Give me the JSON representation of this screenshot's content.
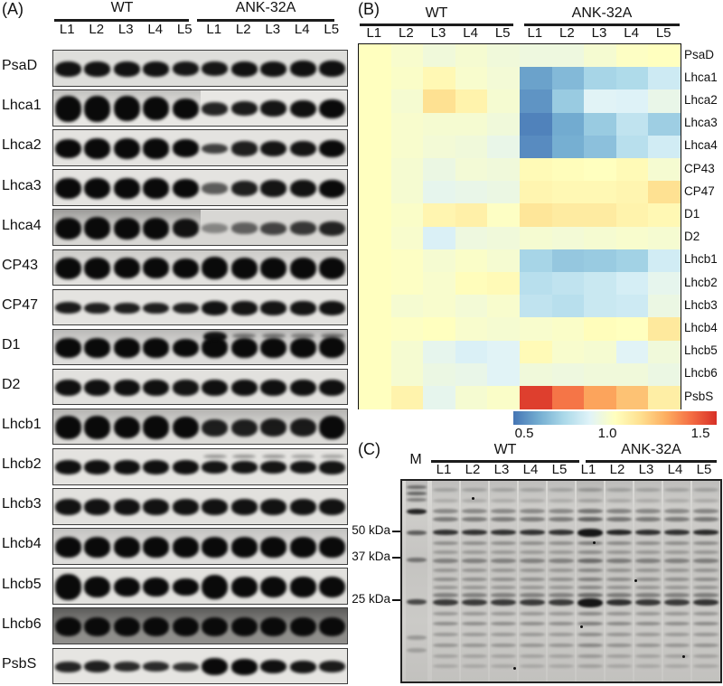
{
  "panel_a": {
    "letter": "(A)",
    "groups": [
      {
        "name": "WT",
        "lanes": [
          "L1",
          "L2",
          "L3",
          "L4",
          "L5"
        ]
      },
      {
        "name": "ANK-32A",
        "lanes": [
          "L1",
          "L2",
          "L3",
          "L4",
          "L5"
        ]
      }
    ],
    "blots": [
      {
        "label": "PsaD",
        "bg": "#dededb",
        "lanes": [
          [
            0.44,
            0.96
          ],
          [
            0.44,
            0.96
          ],
          [
            0.44,
            0.96
          ],
          [
            0.44,
            0.96
          ],
          [
            0.42,
            0.94
          ],
          [
            0.42,
            0.94
          ],
          [
            0.44,
            0.96
          ],
          [
            0.44,
            0.96
          ],
          [
            0.46,
            0.97
          ],
          [
            0.46,
            0.97
          ]
        ]
      },
      {
        "label": "Lhca1",
        "bg": "#e8e7e4",
        "haze": [
          0,
          5,
          0.2
        ],
        "lanes": [
          [
            0.74,
            1
          ],
          [
            0.74,
            1
          ],
          [
            0.72,
            1
          ],
          [
            0.68,
            1
          ],
          [
            0.6,
            1
          ],
          [
            0.38,
            0.88
          ],
          [
            0.42,
            0.92
          ],
          [
            0.46,
            0.95
          ],
          [
            0.5,
            0.97
          ],
          [
            0.56,
            1
          ]
        ]
      },
      {
        "label": "Lhca2",
        "bg": "#e4e3e0",
        "lanes": [
          [
            0.56,
            1
          ],
          [
            0.6,
            1
          ],
          [
            0.62,
            1
          ],
          [
            0.58,
            1
          ],
          [
            0.52,
            1
          ],
          [
            0.3,
            0.75
          ],
          [
            0.42,
            0.9
          ],
          [
            0.46,
            0.95
          ],
          [
            0.46,
            0.95
          ],
          [
            0.5,
            1
          ]
        ]
      },
      {
        "label": "Lhca3",
        "bg": "#e4e3e0",
        "lanes": [
          [
            0.6,
            1
          ],
          [
            0.62,
            1
          ],
          [
            0.6,
            1
          ],
          [
            0.6,
            1
          ],
          [
            0.56,
            1
          ],
          [
            0.32,
            0.62
          ],
          [
            0.44,
            0.9
          ],
          [
            0.48,
            0.95
          ],
          [
            0.5,
            0.96
          ],
          [
            0.52,
            1
          ]
        ]
      },
      {
        "label": "Lhca4",
        "bg": "#d8d7d4",
        "haze": [
          0,
          5,
          0.35
        ],
        "lanes": [
          [
            0.62,
            1
          ],
          [
            0.64,
            1
          ],
          [
            0.62,
            1
          ],
          [
            0.62,
            1
          ],
          [
            0.54,
            0.96
          ],
          [
            0.28,
            0.4
          ],
          [
            0.32,
            0.58
          ],
          [
            0.36,
            0.72
          ],
          [
            0.38,
            0.78
          ],
          [
            0.42,
            0.88
          ]
        ]
      },
      {
        "label": "CP43",
        "bg": "#e2e1de",
        "haze": [
          0,
          10,
          0.12
        ],
        "lanes": [
          [
            0.62,
            1
          ],
          [
            0.62,
            1
          ],
          [
            0.6,
            1
          ],
          [
            0.6,
            1
          ],
          [
            0.58,
            1
          ],
          [
            0.64,
            1
          ],
          [
            0.62,
            1
          ],
          [
            0.62,
            1
          ],
          [
            0.62,
            1
          ],
          [
            0.62,
            1
          ]
        ]
      },
      {
        "label": "CP47",
        "bg": "#e4e3e0",
        "lanes": [
          [
            0.34,
            0.92
          ],
          [
            0.32,
            0.9
          ],
          [
            0.32,
            0.9
          ],
          [
            0.32,
            0.9
          ],
          [
            0.32,
            0.9
          ],
          [
            0.42,
            0.96
          ],
          [
            0.4,
            0.95
          ],
          [
            0.4,
            0.95
          ],
          [
            0.4,
            0.95
          ],
          [
            0.42,
            0.96
          ]
        ]
      },
      {
        "label": "D1",
        "bg": "#dedddb",
        "haze": [
          0,
          10,
          0.2
        ],
        "lanes": [
          [
            0.56,
            1
          ],
          [
            0.56,
            1
          ],
          [
            0.56,
            1
          ],
          [
            0.56,
            1
          ],
          [
            0.54,
            1
          ],
          [
            0.6,
            1
          ],
          [
            0.58,
            1
          ],
          [
            0.58,
            1
          ],
          [
            0.56,
            1
          ],
          [
            0.6,
            1
          ]
        ],
        "extras": [
          [
            5,
            0.2,
            0.3,
            0.95
          ],
          [
            6,
            0.18,
            0.14,
            0.45
          ],
          [
            7,
            0.18,
            0.14,
            0.45
          ],
          [
            8,
            0.18,
            0.13,
            0.4
          ],
          [
            9,
            0.18,
            0.14,
            0.45
          ]
        ]
      },
      {
        "label": "D2",
        "bg": "#e2e1de",
        "lanes": [
          [
            0.48,
            0.97
          ],
          [
            0.48,
            0.97
          ],
          [
            0.48,
            0.97
          ],
          [
            0.48,
            0.97
          ],
          [
            0.46,
            0.95
          ],
          [
            0.48,
            0.97
          ],
          [
            0.48,
            0.97
          ],
          [
            0.48,
            0.97
          ],
          [
            0.48,
            0.97
          ],
          [
            0.48,
            0.97
          ]
        ]
      },
      {
        "label": "Lhcb1",
        "bg": "#dcdbd8",
        "haze": [
          0,
          10,
          0.22
        ],
        "lanes": [
          [
            0.66,
            1
          ],
          [
            0.66,
            1
          ],
          [
            0.64,
            1
          ],
          [
            0.66,
            1
          ],
          [
            0.64,
            1
          ],
          [
            0.5,
            0.9
          ],
          [
            0.5,
            0.9
          ],
          [
            0.52,
            0.92
          ],
          [
            0.52,
            0.92
          ],
          [
            0.68,
            1
          ]
        ]
      },
      {
        "label": "Lhcb2",
        "bg": "#e4e3e0",
        "lanes": [
          [
            0.42,
            0.97
          ],
          [
            0.42,
            0.97
          ],
          [
            0.42,
            0.97
          ],
          [
            0.42,
            0.97
          ],
          [
            0.42,
            0.97
          ],
          [
            0.36,
            0.95
          ],
          [
            0.36,
            0.95
          ],
          [
            0.36,
            0.95
          ],
          [
            0.36,
            0.95
          ],
          [
            0.38,
            0.95
          ]
        ],
        "extras": [
          [
            5,
            0.2,
            0.11,
            0.35
          ],
          [
            6,
            0.2,
            0.11,
            0.35
          ],
          [
            7,
            0.2,
            0.11,
            0.35
          ],
          [
            8,
            0.2,
            0.11,
            0.3
          ],
          [
            9,
            0.2,
            0.11,
            0.3
          ]
        ]
      },
      {
        "label": "Lhcb3",
        "bg": "#e2e1de",
        "lanes": [
          [
            0.46,
            0.96
          ],
          [
            0.46,
            0.96
          ],
          [
            0.46,
            0.96
          ],
          [
            0.46,
            0.96
          ],
          [
            0.46,
            0.96
          ],
          [
            0.46,
            0.96
          ],
          [
            0.46,
            0.96
          ],
          [
            0.46,
            0.96
          ],
          [
            0.46,
            0.96
          ],
          [
            0.46,
            0.96
          ]
        ]
      },
      {
        "label": "Lhcb4",
        "bg": "#dedddb",
        "haze": [
          0,
          10,
          0.15
        ],
        "lanes": [
          [
            0.58,
            1
          ],
          [
            0.58,
            1
          ],
          [
            0.58,
            1
          ],
          [
            0.58,
            1
          ],
          [
            0.58,
            1
          ],
          [
            0.58,
            1
          ],
          [
            0.58,
            1
          ],
          [
            0.58,
            1
          ],
          [
            0.58,
            1
          ],
          [
            0.58,
            1
          ]
        ]
      },
      {
        "label": "Lhcb5",
        "bg": "#e2e1de",
        "lanes": [
          [
            0.74,
            1
          ],
          [
            0.6,
            1
          ],
          [
            0.56,
            1
          ],
          [
            0.56,
            1
          ],
          [
            0.5,
            1
          ],
          [
            0.72,
            1
          ],
          [
            0.6,
            1
          ],
          [
            0.62,
            1
          ],
          [
            0.58,
            1
          ],
          [
            0.62,
            1
          ]
        ]
      },
      {
        "label": "Lhcb6",
        "bg": "#8f8e8b",
        "haze": [
          0,
          10,
          0.5
        ],
        "lanes": [
          [
            0.55,
            1
          ],
          [
            0.55,
            1
          ],
          [
            0.55,
            1
          ],
          [
            0.55,
            1
          ],
          [
            0.55,
            1
          ],
          [
            0.55,
            1
          ],
          [
            0.55,
            1
          ],
          [
            0.55,
            1
          ],
          [
            0.55,
            1
          ],
          [
            0.55,
            1
          ]
        ]
      },
      {
        "label": "PsbS",
        "bg": "#e6e5e2",
        "lanes": [
          [
            0.3,
            0.88
          ],
          [
            0.34,
            0.9
          ],
          [
            0.28,
            0.85
          ],
          [
            0.28,
            0.85
          ],
          [
            0.26,
            0.82
          ],
          [
            0.5,
            1
          ],
          [
            0.46,
            1
          ],
          [
            0.4,
            0.97
          ],
          [
            0.36,
            0.95
          ],
          [
            0.34,
            0.92
          ]
        ]
      }
    ]
  },
  "panel_b": {
    "letter": "(B)",
    "groups": [
      {
        "name": "WT",
        "lanes": [
          "L1",
          "L2",
          "L3",
          "L4",
          "L5"
        ]
      },
      {
        "name": "ANK-32A",
        "lanes": [
          "L1",
          "L2",
          "L3",
          "L4",
          "L5"
        ]
      }
    ],
    "colorbar": {
      "ticks": [
        "0.5",
        "1.0",
        "1.5"
      ],
      "palette": [
        "#4575b4",
        "#74add1",
        "#abd9e9",
        "#e0f3f8",
        "#ffffbf",
        "#fee090",
        "#fdae61",
        "#f46d43",
        "#d73027"
      ]
    }
  },
  "chart_data": {
    "type": "heatmap",
    "col_groups": [
      "WT",
      "ANK-32A"
    ],
    "columns": [
      "WT L1",
      "WT L2",
      "WT L3",
      "WT L4",
      "WT L5",
      "ANK-32A L1",
      "ANK-32A L2",
      "ANK-32A L3",
      "ANK-32A L4",
      "ANK-32A L5"
    ],
    "rows": [
      "PsaD",
      "Lhca1",
      "Lhca2",
      "Lhca3",
      "Lhca4",
      "CP43",
      "CP47",
      "D1",
      "D2",
      "Lhcb1",
      "Lhcb2",
      "Lhcb3",
      "Lhcb4",
      "Lhcb5",
      "Lhcb6",
      "PsbS"
    ],
    "values": [
      [
        1.0,
        0.97,
        0.94,
        0.96,
        0.94,
        0.93,
        0.93,
        0.96,
        0.99,
        1.0
      ],
      [
        1.0,
        0.98,
        1.03,
        0.97,
        0.95,
        0.6,
        0.66,
        0.74,
        0.76,
        0.83
      ],
      [
        1.0,
        0.96,
        1.12,
        1.05,
        0.96,
        0.57,
        0.71,
        0.88,
        0.87,
        0.91
      ],
      [
        1.0,
        0.97,
        0.96,
        0.96,
        0.94,
        0.53,
        0.62,
        0.71,
        0.8,
        0.72
      ],
      [
        1.0,
        0.97,
        0.95,
        0.94,
        0.91,
        0.55,
        0.63,
        0.68,
        0.78,
        0.84
      ],
      [
        1.0,
        0.96,
        0.92,
        0.95,
        0.94,
        1.02,
        1.01,
        1.0,
        1.02,
        0.96
      ],
      [
        1.0,
        0.96,
        0.9,
        0.91,
        0.92,
        1.04,
        1.03,
        1.03,
        1.04,
        1.12
      ],
      [
        1.0,
        0.98,
        1.04,
        1.06,
        0.99,
        1.1,
        1.08,
        1.08,
        1.05,
        1.03
      ],
      [
        1.0,
        0.97,
        0.86,
        0.93,
        0.94,
        0.96,
        0.95,
        0.96,
        0.97,
        0.96
      ],
      [
        1.0,
        0.99,
        0.96,
        0.98,
        0.96,
        0.74,
        0.7,
        0.71,
        0.73,
        0.84
      ],
      [
        1.0,
        0.99,
        0.97,
        1.01,
        1.02,
        0.78,
        0.8,
        0.82,
        0.85,
        0.9
      ],
      [
        1.0,
        0.96,
        0.97,
        0.95,
        0.97,
        0.8,
        0.78,
        0.82,
        0.83,
        0.92
      ],
      [
        1.0,
        0.99,
        1.0,
        0.97,
        0.96,
        0.97,
        0.98,
        1.01,
        1.0,
        1.09
      ],
      [
        1.0,
        0.96,
        0.9,
        0.86,
        0.88,
        1.02,
        0.97,
        0.96,
        0.88,
        0.94
      ],
      [
        1.0,
        0.96,
        0.92,
        0.91,
        0.88,
        0.94,
        0.93,
        0.94,
        0.94,
        0.92
      ],
      [
        1.0,
        1.05,
        0.9,
        0.96,
        0.98,
        1.47,
        1.36,
        1.27,
        1.2,
        1.07
      ]
    ],
    "scale": {
      "min": 0.5,
      "mid": 1.0,
      "max": 1.5,
      "colormap": "RdYlBu_r"
    },
    "legend_position": "bottom"
  },
  "panel_c": {
    "letter": "(C)",
    "marker_lane_label": "M",
    "groups": [
      {
        "name": "WT",
        "lanes": [
          "L1",
          "L2",
          "L3",
          "L4",
          "L5"
        ]
      },
      {
        "name": "ANK-32A",
        "lanes": [
          "L1",
          "L2",
          "L3",
          "L4",
          "L5"
        ]
      }
    ],
    "mw_markers": [
      {
        "label": "50 kDa",
        "pos": 0.26
      },
      {
        "label": "37 kDa",
        "pos": 0.392
      },
      {
        "label": "25 kDa",
        "pos": 0.604
      }
    ],
    "gel": {
      "sample_bands": [
        [
          0.045,
          0.2,
          4
        ],
        [
          0.1,
          0.17,
          4
        ],
        [
          0.15,
          0.38,
          5
        ],
        [
          0.19,
          0.45,
          5
        ],
        [
          0.257,
          0.85,
          6
        ],
        [
          0.31,
          0.33,
          4
        ],
        [
          0.355,
          0.26,
          4
        ],
        [
          0.4,
          0.4,
          5
        ],
        [
          0.445,
          0.28,
          4
        ],
        [
          0.49,
          0.32,
          4
        ],
        [
          0.53,
          0.28,
          4
        ],
        [
          0.57,
          0.4,
          5
        ],
        [
          0.608,
          0.8,
          7
        ],
        [
          0.66,
          0.28,
          4
        ],
        [
          0.71,
          0.33,
          4
        ],
        [
          0.765,
          0.26,
          4
        ],
        [
          0.82,
          0.28,
          4
        ],
        [
          0.875,
          0.2,
          4
        ],
        [
          0.925,
          0.16,
          4
        ]
      ],
      "marker_bands": [
        [
          0.03,
          0.5,
          4
        ],
        [
          0.062,
          0.55,
          4
        ],
        [
          0.095,
          0.42,
          4
        ],
        [
          0.155,
          0.92,
          6
        ],
        [
          0.26,
          0.62,
          5
        ],
        [
          0.392,
          0.48,
          5
        ],
        [
          0.604,
          0.72,
          6
        ],
        [
          0.78,
          0.26,
          5
        ],
        [
          0.845,
          0.22,
          5
        ]
      ],
      "lane_strengths": [
        1,
        1,
        1,
        1,
        1,
        1.3,
        1.08,
        1.02,
        1,
        1.05
      ],
      "specks": [
        [
          0.22,
          0.08
        ],
        [
          0.73,
          0.49
        ],
        [
          0.56,
          0.72
        ],
        [
          0.88,
          0.87
        ],
        [
          0.35,
          0.93
        ],
        [
          0.6,
          0.3
        ]
      ]
    }
  }
}
